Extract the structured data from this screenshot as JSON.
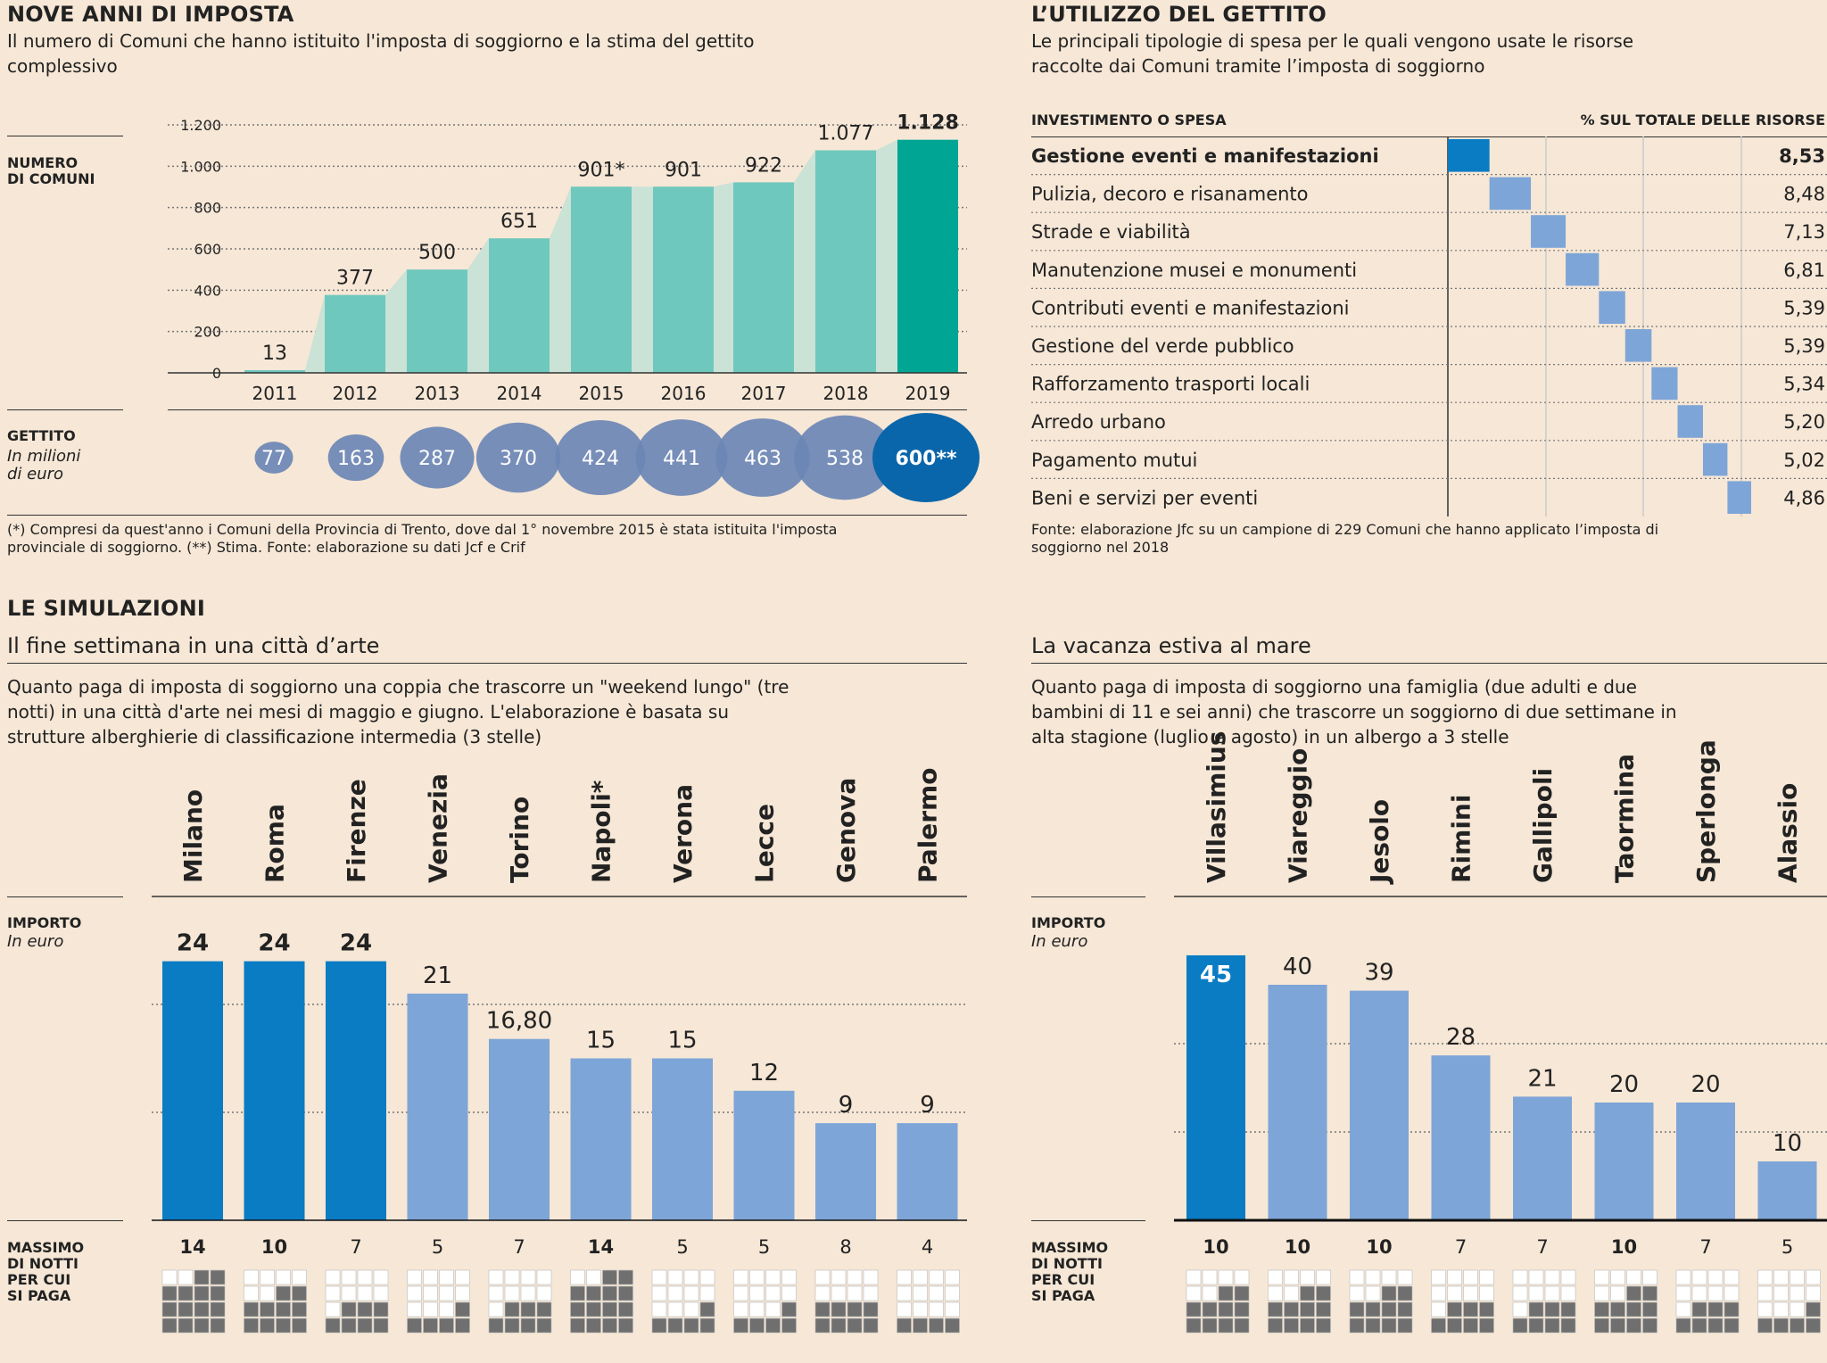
{
  "sec1": {
    "title": "NOVE ANNI DI IMPOSTA",
    "subtitle": "Il numero di Comuni che hanno istituito l'imposta di soggiorno e la stima del gettito complessivo",
    "ylabel": "NUMERO\nDI COMUNI",
    "gettito_label": "GETTITO",
    "gettito_unit": "In milioni\ndi euro",
    "note": "(*) Compresi da quest'anno i Comuni della Provincia di Trento, dove dal 1° novembre 2015 è stata istituita l'imposta provinciale di soggiorno. (**) Stima. Fonte: elaborazione su dati Jcf e Crif"
  },
  "sec2": {
    "title": "L’UTILIZZO DEL GETTITO",
    "subtitle": "Le principali tipologie di spesa per le quali vengono usate le risorse raccolte dai Comuni tramite l’imposta di soggiorno",
    "col1": "INVESTIMENTO O SPESA",
    "col2": "% SUL TOTALE DELLE RISORSE",
    "note": "Fonte: elaborazione Jfc su un campione di 229 Comuni che hanno applicato l’imposta di soggiorno nel 2018"
  },
  "sec3": {
    "title": "LE SIMULAZIONI",
    "sub_left": "Il fine settimana in una città d’arte",
    "desc_left": "Quanto paga di imposta di soggiorno una coppia che trascorre un \"weekend lungo\" (tre notti) in una città d'arte nei mesi di maggio e giugno. L'elaborazione è basata su strutture alberghierie di classificazione intermedia (3 stelle)",
    "sub_right": "La vacanza estiva al mare",
    "desc_right": "Quanto paga di imposta di soggiorno una famiglia (due adulti e due bambini di 11 e sei anni) che trascorre un soggiorno di due settimane in alta stagione (luglio e agosto) in un albergo a 3 stelle",
    "importo_label": "IMPORTO",
    "importo_unit": "In euro",
    "massimo_label": "MASSIMO\nDI NOTTI\nPER CUI\nSI PAGA"
  },
  "colors": {
    "background": "#f6e7d6",
    "teal": "#6fc8bd",
    "teal_dark": "#00a693",
    "teal_fill": "#cbe2d6",
    "bubble": "#6b87b5",
    "bubble_dark": "#0a66aa",
    "bar_dark": "#0a7cc4",
    "bar_light": "#7ea5d7",
    "grid_dark": "#777777",
    "grid_light": "#cccccc"
  },
  "chart_data": [
    {
      "type": "bar",
      "categories": [
        "2011",
        "2012",
        "2013",
        "2014",
        "2015",
        "2016",
        "2017",
        "2018",
        "2019"
      ],
      "values": [
        13,
        377,
        500,
        651,
        901,
        901,
        922,
        1077,
        1128
      ],
      "value_labels": [
        "13",
        "377",
        "500",
        "651",
        "901*",
        "901",
        "922",
        "1.077",
        "1.128"
      ],
      "ylim": [
        0,
        1200
      ],
      "yticks": [
        0,
        200,
        400,
        600,
        800,
        1000,
        1200
      ],
      "ytick_labels": [
        "0",
        "200",
        "400",
        "600",
        "800",
        "1.000",
        "1.200"
      ]
    },
    {
      "type": "scatter",
      "categories": [
        "2011",
        "2012",
        "2013",
        "2014",
        "2015",
        "2016",
        "2017",
        "2018",
        "2019"
      ],
      "values": [
        77,
        163,
        287,
        370,
        424,
        441,
        463,
        538,
        600
      ],
      "value_labels": [
        "77",
        "163",
        "287",
        "370",
        "424",
        "441",
        "463",
        "538",
        "600**"
      ]
    },
    {
      "type": "bar",
      "categories": [
        "Gestione eventi e manifestazioni",
        "Pulizia, decoro e risanamento",
        "Strade e viabilità",
        "Manutenzione musei e monumenti",
        "Contributi eventi e manifestazioni",
        "Gestione del verde pubblico",
        "Rafforzamento trasporti locali",
        "Arredo urbano",
        "Pagamento mutui",
        "Beni e servizi per eventi"
      ],
      "values": [
        8.53,
        8.48,
        7.13,
        6.81,
        5.39,
        5.39,
        5.34,
        5.2,
        5.02,
        4.86
      ],
      "value_labels": [
        "8,53",
        "8,48",
        "7,13",
        "6,81",
        "5,39",
        "5,39",
        "5,34",
        "5,20",
        "5,02",
        "4,86"
      ]
    },
    {
      "type": "bar",
      "categories": [
        "Milano",
        "Roma",
        "Firenze",
        "Venezia",
        "Torino",
        "Napoli*",
        "Verona",
        "Lecce",
        "Genova",
        "Palermo"
      ],
      "values": [
        24,
        24,
        24,
        21,
        16.8,
        15,
        15,
        12,
        9,
        9
      ],
      "value_labels": [
        "24",
        "24",
        "24",
        "21",
        "16,80",
        "15",
        "15",
        "12",
        "9",
        "9"
      ],
      "max_nights": [
        14,
        10,
        7,
        5,
        7,
        14,
        5,
        5,
        8,
        4
      ],
      "highlight": [
        true,
        true,
        true,
        false,
        false,
        false,
        false,
        false,
        false,
        false
      ],
      "ylim": [
        0,
        30
      ]
    },
    {
      "type": "bar",
      "categories": [
        "Villasimius",
        "Viareggio",
        "Jesolo",
        "Rimini",
        "Gallipoli",
        "Taormina",
        "Sperlonga",
        "Alassio"
      ],
      "values": [
        45,
        40,
        39,
        28,
        21,
        20,
        20,
        10
      ],
      "value_labels": [
        "45",
        "40",
        "39",
        "28",
        "21",
        "20",
        "20",
        "10"
      ],
      "max_nights": [
        10,
        10,
        10,
        7,
        7,
        10,
        7,
        5
      ],
      "highlight": [
        true,
        false,
        false,
        false,
        false,
        false,
        false,
        false
      ],
      "ylim": [
        0,
        55
      ]
    }
  ]
}
